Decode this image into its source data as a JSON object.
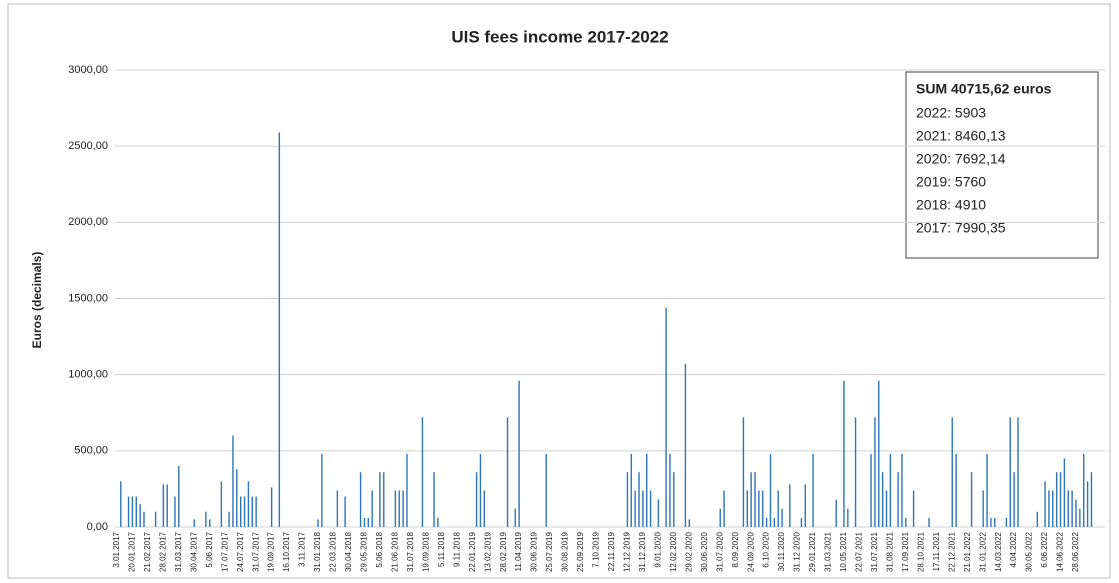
{
  "chart_data": {
    "type": "bar",
    "title": "UIS fees income 2017-2022",
    "y_label": "Euros (decimals)",
    "color": "#2e75b6",
    "grid": true,
    "ylim": [
      0,
      3000
    ],
    "yticks": [
      {
        "value": 0,
        "label": "0,00"
      },
      {
        "value": 500,
        "label": "500,00"
      },
      {
        "value": 1000,
        "label": "1000,00"
      },
      {
        "value": 1500,
        "label": "1500,00"
      },
      {
        "value": 2000,
        "label": "2000,00"
      },
      {
        "value": 2500,
        "label": "2500,00"
      },
      {
        "value": 3000,
        "label": "3000,00"
      }
    ],
    "annotation": {
      "title": "SUM 40715,62 euros",
      "lines": [
        "2022: 5903",
        "2021:  8460,13",
        "2020: 7692,14",
        "2019: 5760",
        "2018: 4910",
        "2017: 7990,35"
      ]
    },
    "categories": [
      "3.01.2017",
      null,
      null,
      null,
      "20.01.2017",
      null,
      null,
      null,
      "21.02.2017",
      null,
      null,
      null,
      "28.02.2017",
      null,
      null,
      null,
      "31.03.2017",
      null,
      null,
      null,
      "30.04.2017",
      null,
      null,
      null,
      "5.06.2017",
      null,
      null,
      null,
      "17.07.2017",
      null,
      null,
      null,
      "24.07.2017",
      null,
      null,
      null,
      "31.07.2017",
      null,
      null,
      null,
      "19.09.2017",
      null,
      null,
      null,
      "16.10.2017",
      null,
      null,
      null,
      "3.11.2017",
      null,
      null,
      null,
      "31.01.2018",
      null,
      null,
      null,
      "22.03.2018",
      null,
      null,
      null,
      "30.04.2018",
      null,
      null,
      null,
      "29.05.2018",
      null,
      null,
      null,
      "5.06.2018",
      null,
      null,
      null,
      "21.06.2018",
      null,
      null,
      null,
      "31.07.2018",
      null,
      null,
      null,
      "19.09.2018",
      null,
      null,
      null,
      "5.11.2018",
      null,
      null,
      null,
      "9.11.2018",
      null,
      null,
      null,
      "22.01.2019",
      null,
      null,
      null,
      "13.02.2019",
      null,
      null,
      null,
      "28.02.2019",
      null,
      null,
      null,
      "11.04.2019",
      null,
      null,
      null,
      "30.06.2019",
      null,
      null,
      null,
      "25.07.2019",
      null,
      null,
      null,
      "30.08.2019",
      null,
      null,
      null,
      "25.09.2019",
      null,
      null,
      null,
      "7.10.2019",
      null,
      null,
      null,
      "22.11.2019",
      null,
      null,
      null,
      "12.12.2019",
      null,
      null,
      null,
      "31.12.2019",
      null,
      null,
      null,
      "9.01.2020",
      null,
      null,
      null,
      "12.02.2020",
      null,
      null,
      null,
      "29.02.2020",
      null,
      null,
      null,
      "30.06.2020",
      null,
      null,
      null,
      "31.07.2020",
      null,
      null,
      null,
      "8.09.2020",
      null,
      null,
      null,
      "24.09.2020",
      null,
      null,
      null,
      "6.10.2020",
      null,
      null,
      null,
      "30.11.2020",
      null,
      null,
      null,
      "31.12.2020",
      null,
      null,
      null,
      "29.01.2021",
      null,
      null,
      null,
      "31.03.2021",
      null,
      null,
      null,
      "10.05.2021",
      null,
      null,
      null,
      "22.07.2021",
      null,
      null,
      null,
      "31.07.2021",
      null,
      null,
      null,
      "31.08.2021",
      null,
      null,
      null,
      "17.09.2021",
      null,
      null,
      null,
      "28.10.2021",
      null,
      null,
      null,
      "17.11.2021",
      null,
      null,
      null,
      "22.12.2021",
      null,
      null,
      null,
      "21.01.2022",
      null,
      null,
      null,
      "31.01.2022",
      null,
      null,
      null,
      "14.03.2022",
      null,
      null,
      null,
      "4.04.2022",
      null,
      null,
      null,
      "30.05.2022",
      null,
      null,
      null,
      "6.06.2022",
      null,
      null,
      null,
      "14.06.2022",
      null,
      null,
      null,
      "28.06.2022",
      null,
      null,
      null,
      null,
      null,
      null,
      null
    ],
    "values": [
      null,
      300,
      null,
      200,
      200,
      200,
      150,
      100,
      null,
      null,
      100,
      null,
      280,
      280,
      null,
      200,
      400,
      null,
      null,
      null,
      50,
      null,
      null,
      100,
      50,
      null,
      null,
      300,
      null,
      100,
      600,
      380,
      200,
      200,
      300,
      200,
      200,
      null,
      null,
      null,
      260,
      null,
      2590,
      null,
      null,
      null,
      null,
      null,
      null,
      null,
      null,
      null,
      50,
      480,
      null,
      null,
      null,
      240,
      null,
      200,
      null,
      null,
      null,
      360,
      60,
      60,
      240,
      null,
      360,
      360,
      null,
      null,
      240,
      240,
      240,
      480,
      null,
      null,
      null,
      720,
      null,
      null,
      360,
      60,
      null,
      null,
      null,
      null,
      null,
      null,
      null,
      null,
      null,
      360,
      480,
      240,
      null,
      null,
      null,
      null,
      null,
      720,
      null,
      120,
      960,
      null,
      null,
      null,
      null,
      null,
      null,
      480,
      null,
      null,
      null,
      null,
      null,
      null,
      null,
      null,
      null,
      null,
      null,
      null,
      null,
      null,
      null,
      null,
      null,
      null,
      null,
      null,
      360,
      480,
      240,
      360,
      240,
      480,
      240,
      null,
      180,
      null,
      1440,
      480,
      360,
      null,
      null,
      1070,
      50,
      null,
      null,
      null,
      null,
      null,
      null,
      null,
      120,
      240,
      null,
      null,
      null,
      null,
      720,
      240,
      360,
      360,
      240,
      240,
      60,
      480,
      60,
      240,
      120,
      null,
      280,
      null,
      null,
      60,
      280,
      null,
      480,
      null,
      null,
      null,
      null,
      null,
      180,
      null,
      960,
      120,
      null,
      720,
      null,
      null,
      null,
      480,
      720,
      960,
      360,
      240,
      480,
      null,
      360,
      480,
      60,
      null,
      240,
      null,
      null,
      null,
      60,
      null,
      null,
      null,
      null,
      null,
      720,
      480,
      null,
      null,
      null,
      360,
      null,
      null,
      240,
      480,
      60,
      60,
      null,
      null,
      60,
      720,
      360,
      720,
      null,
      null,
      null,
      null,
      100,
      null,
      300,
      240,
      240,
      360,
      360,
      450,
      240,
      240,
      180,
      120,
      480,
      300,
      360,
      null,
      null,
      null
    ]
  }
}
